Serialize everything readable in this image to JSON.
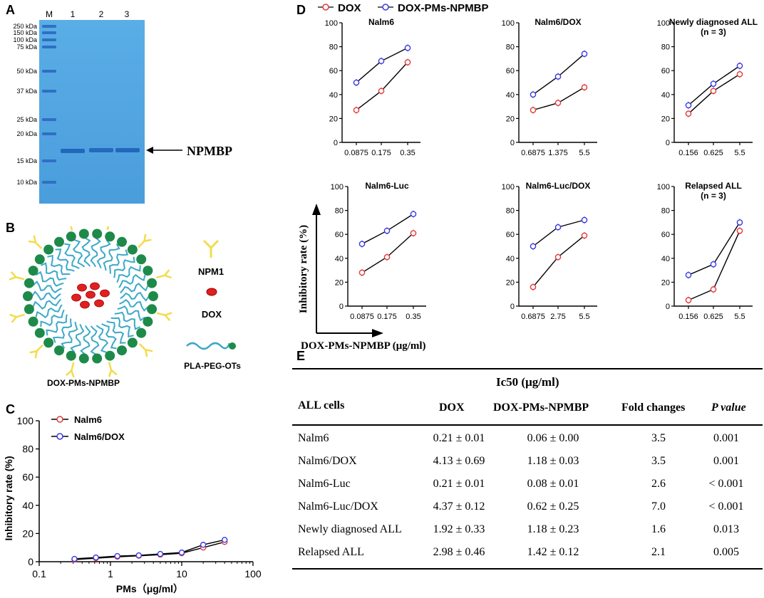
{
  "panels": {
    "a": "A",
    "b": "B",
    "c": "C",
    "d": "D",
    "e": "E"
  },
  "gel": {
    "lanes": [
      "M",
      "1",
      "2",
      "3"
    ],
    "markers": [
      "250 kDa",
      "150 kDa",
      "100 kDa",
      "75 kDa",
      "50 kDa",
      "37 kDa",
      "25 kDa",
      "20 kDa",
      "15 kDa",
      "10 kDa"
    ],
    "band_label": "NPMBP",
    "colors": {
      "bg": "#4fa3e0",
      "band": "#1a5db5",
      "marker": "#2f6fc3"
    }
  },
  "schematic": {
    "labels": {
      "npm1": "NPM1",
      "dox": "DOX",
      "plapeg": "PLA-PEG-OTs",
      "micelle": "DOX-PMs-NPMBP"
    },
    "colors": {
      "bead": "#1e8a4a",
      "tail": "#3da9c8",
      "antibody": "#f2dc4b",
      "dox": "#e02020"
    }
  },
  "chart_data": [
    {
      "id": "C",
      "type": "line",
      "title": "",
      "xlabel": "PMs（μg/ml）",
      "ylabel": "Inhibitory rate (%)",
      "xscale": "log",
      "xlim": [
        0.1,
        100
      ],
      "ylim": [
        0,
        100
      ],
      "xticks": [
        "0.1",
        "1",
        "10",
        "100"
      ],
      "yticks": [
        "0",
        "20",
        "40",
        "60",
        "80",
        "100"
      ],
      "series": [
        {
          "name": "Nalm6",
          "color": "#e23a3a",
          "x": [
            0.3125,
            0.625,
            1.25,
            2.5,
            5,
            10,
            20,
            40
          ],
          "y": [
            1.5,
            2.5,
            3.5,
            4.2,
            5,
            6,
            10,
            14
          ]
        },
        {
          "name": "Nalm6/DOX",
          "color": "#3a3ae2",
          "x": [
            0.3125,
            0.625,
            1.25,
            2.5,
            5,
            10,
            20,
            40
          ],
          "y": [
            2,
            3,
            4,
            4.5,
            5.5,
            6.5,
            12,
            15.5
          ]
        }
      ]
    },
    {
      "id": "D1",
      "type": "line",
      "title": "Nalm6",
      "categories": [
        "0.0875",
        "0.175",
        "0.35"
      ],
      "ylim": [
        0,
        100
      ],
      "yticks": [
        "0",
        "20",
        "40",
        "60",
        "80",
        "100"
      ],
      "series": [
        {
          "name": "DOX",
          "color": "#e23a3a",
          "values": [
            27,
            43,
            67
          ]
        },
        {
          "name": "DOX-PMs-NPMBP",
          "color": "#3a3ae2",
          "values": [
            50,
            68,
            79
          ]
        }
      ]
    },
    {
      "id": "D2",
      "type": "line",
      "title": "Nalm6/DOX",
      "categories": [
        "0.6875",
        "1.375",
        "5.5"
      ],
      "ylim": [
        0,
        100
      ],
      "yticks": [
        "0",
        "20",
        "40",
        "60",
        "80",
        "100"
      ],
      "series": [
        {
          "name": "DOX",
          "color": "#e23a3a",
          "values": [
            27,
            33,
            46
          ]
        },
        {
          "name": "DOX-PMs-NPMBP",
          "color": "#3a3ae2",
          "values": [
            40,
            55,
            74
          ]
        }
      ]
    },
    {
      "id": "D3",
      "type": "line",
      "title": "Newly diagnosed ALL",
      "subtitle": "(n = 3)",
      "categories": [
        "0.156",
        "0.625",
        "5.5"
      ],
      "ylim": [
        0,
        100
      ],
      "yticks": [
        "0",
        "20",
        "40",
        "60",
        "80",
        "100"
      ],
      "series": [
        {
          "name": "DOX",
          "color": "#e23a3a",
          "values": [
            24,
            43,
            57
          ]
        },
        {
          "name": "DOX-PMs-NPMBP",
          "color": "#3a3ae2",
          "values": [
            31,
            49,
            64
          ]
        }
      ]
    },
    {
      "id": "D4",
      "type": "line",
      "title": "Nalm6-Luc",
      "categories": [
        "0.0875",
        "0.175",
        "0.35"
      ],
      "ylim": [
        0,
        100
      ],
      "yticks": [
        "0",
        "20",
        "40",
        "60",
        "80",
        "100"
      ],
      "series": [
        {
          "name": "DOX",
          "color": "#e23a3a",
          "values": [
            28,
            41,
            61
          ]
        },
        {
          "name": "DOX-PMs-NPMBP",
          "color": "#3a3ae2",
          "values": [
            52,
            63,
            77
          ]
        }
      ]
    },
    {
      "id": "D5",
      "type": "line",
      "title": "Nalm6-Luc/DOX",
      "categories": [
        "0.6875",
        "2.75",
        "5.5"
      ],
      "ylim": [
        0,
        100
      ],
      "yticks": [
        "0",
        "20",
        "40",
        "60",
        "80",
        "100"
      ],
      "series": [
        {
          "name": "DOX",
          "color": "#e23a3a",
          "values": [
            16,
            41,
            59
          ]
        },
        {
          "name": "DOX-PMs-NPMBP",
          "color": "#3a3ae2",
          "values": [
            50,
            66,
            72
          ]
        }
      ]
    },
    {
      "id": "D6",
      "type": "line",
      "title": "Relapsed ALL",
      "subtitle": "(n = 3)",
      "categories": [
        "0.156",
        "0.625",
        "5.5"
      ],
      "ylim": [
        0,
        100
      ],
      "yticks": [
        "0",
        "20",
        "40",
        "60",
        "80",
        "100"
      ],
      "series": [
        {
          "name": "DOX",
          "color": "#e23a3a",
          "values": [
            5,
            14,
            63
          ]
        },
        {
          "name": "DOX-PMs-NPMBP",
          "color": "#3a3ae2",
          "values": [
            26,
            35,
            70
          ]
        }
      ]
    }
  ],
  "d_legend": {
    "dox": "DOX",
    "pms": "DOX-PMs-NPMBP"
  },
  "d_axes": {
    "ylabel": "Inhibitory rate (%)",
    "xlabel": "DOX-PMs-NPMBP (μg/ml)"
  },
  "table": {
    "title": "Ic50 (μg/ml)",
    "headers": [
      "ALL cells",
      "DOX",
      "DOX-PMs-NPMBP",
      "Fold changes",
      "P value"
    ],
    "rows": [
      [
        "Nalm6",
        "0.21 ± 0.01",
        "0.06 ± 0.00",
        "3.5",
        "0.001"
      ],
      [
        "Nalm6/DOX",
        "4.13 ± 0.69",
        "1.18 ± 0.03",
        "3.5",
        "0.001"
      ],
      [
        "Nalm6-Luc",
        "0.21 ± 0.01",
        "0.08 ± 0.01",
        "2.6",
        "< 0.001"
      ],
      [
        "Nalm6-Luc/DOX",
        "4.37 ± 0.12",
        "0.62 ± 0.25",
        "7.0",
        "< 0.001"
      ],
      [
        "Newly diagnosed ALL",
        "1.92 ± 0.33",
        "1.18 ± 0.23",
        "1.6",
        "0.013"
      ],
      [
        "Relapsed ALL",
        "2.98 ± 0.46",
        "1.42 ± 0.12",
        "2.1",
        "0.005"
      ]
    ]
  }
}
